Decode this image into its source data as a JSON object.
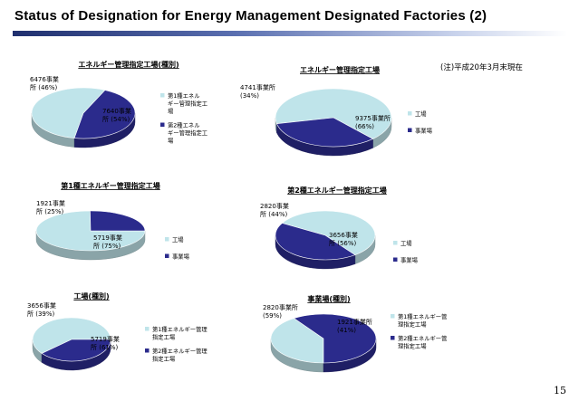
{
  "slide": {
    "title": "Status of Designation for Energy Management Designated Factories (2)",
    "note": "(注)平成20年3月末現在",
    "page_number": "15"
  },
  "colors": {
    "dark": "#2b2b8c",
    "light": "#bfe4ea"
  },
  "chart_data": [
    {
      "type": "pie",
      "title": "エネルギー管理指定工場(種別)",
      "slices": [
        {
          "label": "第1種エネルギー管理指定工場",
          "value": 7640,
          "percent": 54,
          "data_label": [
            "7640事業",
            "所 (54%)"
          ]
        },
        {
          "label": "第2種エネルギー管理指定工場",
          "value": 6476,
          "percent": 46,
          "data_label": [
            "6476事業",
            "所 (46%)"
          ]
        }
      ],
      "legend": [
        [
          "第1種エネル",
          "ギー管理指定工",
          "場"
        ],
        [
          "第2種エネル",
          "ギー管理指定工",
          "場"
        ]
      ]
    },
    {
      "type": "pie",
      "title": "エネルギー管理指定工場",
      "slices": [
        {
          "label": "工場",
          "value": 9375,
          "percent": 66,
          "data_label": [
            "9375事業所",
            "(66%)"
          ]
        },
        {
          "label": "事業場",
          "value": 4741,
          "percent": 34,
          "data_label": [
            "4741事業所",
            "(34%)"
          ]
        }
      ],
      "legend": [
        [
          "工場"
        ],
        [
          "事業場"
        ]
      ]
    },
    {
      "type": "pie",
      "title": "第1種エネルギー管理指定工場",
      "slices": [
        {
          "label": "工場",
          "value": 5719,
          "percent": 75,
          "data_label": [
            "5719事業",
            "所 (75%)"
          ]
        },
        {
          "label": "事業場",
          "value": 1921,
          "percent": 25,
          "data_label": [
            "1921事業",
            "所 (25%)"
          ]
        }
      ],
      "legend": [
        [
          "工場"
        ],
        [
          "事業場"
        ]
      ]
    },
    {
      "type": "pie",
      "title": "第2種エネルギー管理指定工場",
      "slices": [
        {
          "label": "工場",
          "value": 3656,
          "percent": 56,
          "data_label": [
            "3656事業",
            "所 (56%)"
          ]
        },
        {
          "label": "事業場",
          "value": 2820,
          "percent": 44,
          "data_label": [
            "2820事業",
            "所 (44%)"
          ]
        }
      ],
      "legend": [
        [
          "工場"
        ],
        [
          "事業場"
        ]
      ]
    },
    {
      "type": "pie",
      "title": "工場(種別)",
      "slices": [
        {
          "label": "第1種エネルギー管理指定工場",
          "value": 5719,
          "percent": 61,
          "data_label": [
            "5719事業",
            "所 (61%)"
          ]
        },
        {
          "label": "第2種エネルギー管理指定工場",
          "value": 3656,
          "percent": 39,
          "data_label": [
            "3656事業",
            "所 (39%)"
          ]
        }
      ],
      "legend": [
        [
          "第1種エネルギー管理",
          "指定工場"
        ],
        [
          "第2種エネルギー管理",
          "指定工場"
        ]
      ]
    },
    {
      "type": "pie",
      "title": "事業場(種別)",
      "slices": [
        {
          "label": "第1種エネルギー管理指定工場",
          "value": 1921,
          "percent": 41,
          "data_label": [
            "1921事業所",
            "(41%)"
          ]
        },
        {
          "label": "第2種エネルギー管理指定工場",
          "value": 2820,
          "percent": 59,
          "data_label": [
            "2820事業所",
            "(59%)"
          ]
        }
      ],
      "legend": [
        [
          "第1種エネルギー管",
          "理指定工場"
        ],
        [
          "第2種エネルギー管",
          "理指定工場"
        ]
      ]
    }
  ]
}
